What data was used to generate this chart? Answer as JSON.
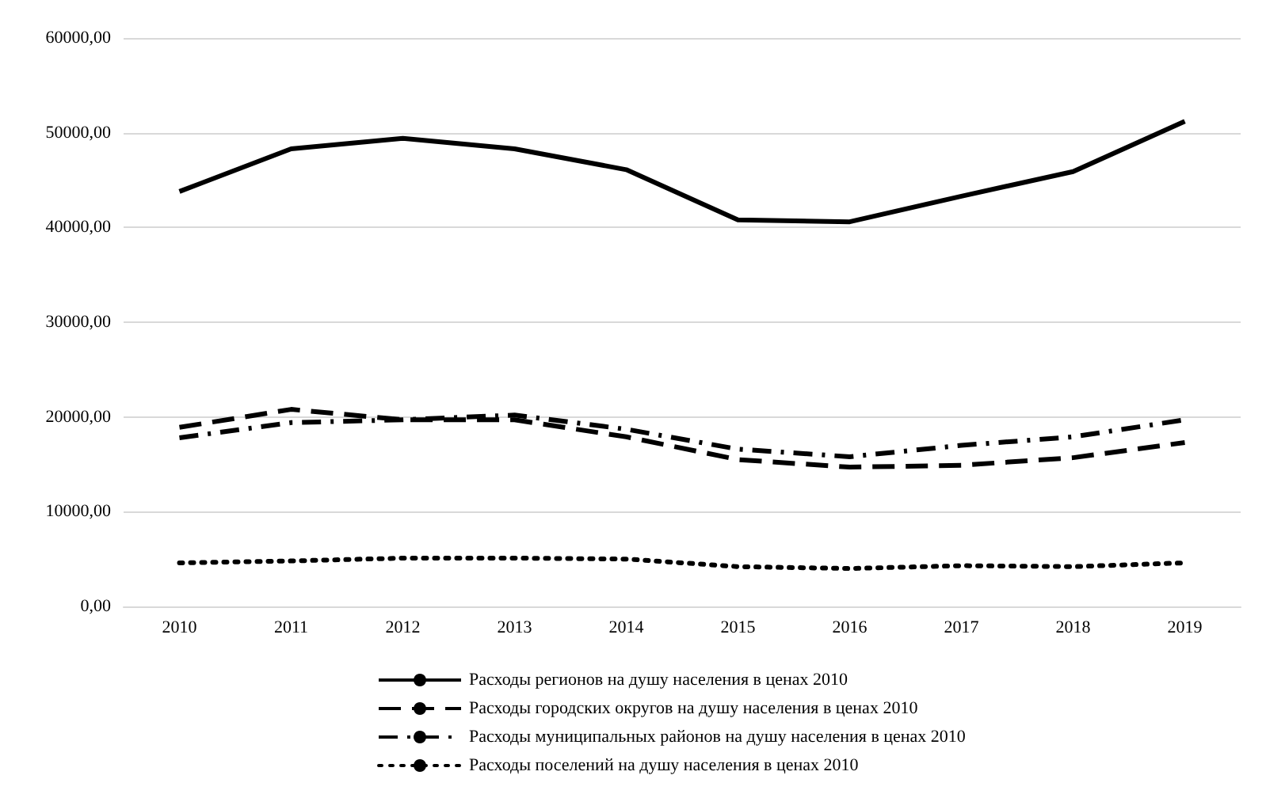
{
  "chart_data": {
    "type": "line",
    "categories": [
      "2010",
      "2011",
      "2012",
      "2013",
      "2014",
      "2015",
      "2016",
      "2017",
      "2018",
      "2019"
    ],
    "series": [
      {
        "name": "Расходы регионов на душу населения в ценах 2010",
        "color": "#000000",
        "line_style": "solid",
        "values": [
          43800,
          48300,
          49400,
          48300,
          46100,
          40800,
          40600,
          43300,
          45900,
          51200
        ]
      },
      {
        "name": "Расходы городских округов на душу населения в ценах 2010",
        "color": "#000000",
        "line_style": "dashed",
        "values": [
          18900,
          20800,
          19700,
          19700,
          17900,
          15500,
          14700,
          14900,
          15700,
          17300
        ]
      },
      {
        "name": "Расходы муниципальных районов на душу населения в ценах 2010",
        "color": "#000000",
        "line_style": "dashdot",
        "values": [
          17800,
          19400,
          19700,
          20200,
          18700,
          16600,
          15800,
          17000,
          17900,
          19700
        ]
      },
      {
        "name": "Расходы поселений на душу населения в ценах 2010",
        "color": "#000000",
        "line_style": "dotted",
        "values": [
          4600,
          4800,
          5100,
          5100,
          5000,
          4200,
          4000,
          4300,
          4200,
          4600
        ]
      }
    ],
    "ylim": [
      0,
      60000
    ],
    "yticks": [
      {
        "value": 0,
        "label": "0,00"
      },
      {
        "value": 10000,
        "label": "10000,00"
      },
      {
        "value": 20000,
        "label": "20000,00"
      },
      {
        "value": 30000,
        "label": "30000,00"
      },
      {
        "value": 40000,
        "label": "40000,00"
      },
      {
        "value": 50000,
        "label": "50000,00"
      },
      {
        "value": 60000,
        "label": "60000,00"
      }
    ],
    "grid": "y",
    "legend": "bottom",
    "marker": "none"
  }
}
